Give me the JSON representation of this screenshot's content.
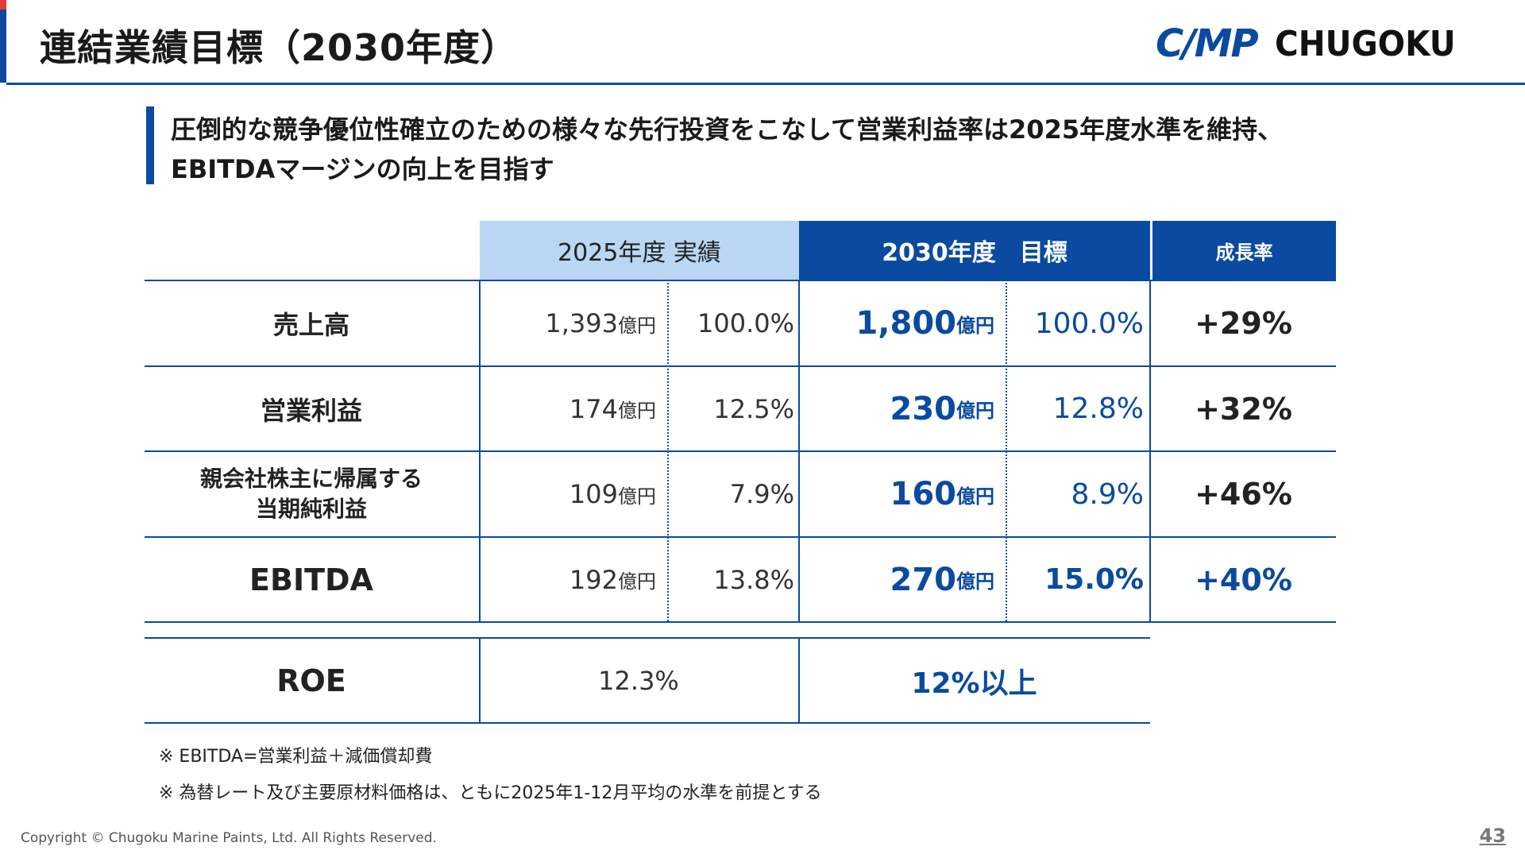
{
  "header": {
    "title": "連結業績目標（2030年度）",
    "logo_mark": "C/MP",
    "logo_text": "CHUGOKU",
    "accent_color": "#0a4aa0"
  },
  "lead": {
    "line1": "圧倒的な競争優位性確立のための様々な先行投資をこなして営業利益率は2025年度水準を維持、",
    "line2": "EBITDAマージンの向上を目指す"
  },
  "table": {
    "header_actual": "2025年度 実績",
    "header_target": "2030年度　目標",
    "header_growth": "成長率",
    "rows": [
      {
        "label": "売上高",
        "actual_value": "1,393",
        "actual_unit": "億円",
        "actual_pct": "100.0%",
        "target_value": "1,800",
        "target_unit": "億円",
        "target_pct": "100.0%",
        "growth": "+29%"
      },
      {
        "label": "営業利益",
        "actual_value": "174",
        "actual_unit": "億円",
        "actual_pct": "12.5%",
        "target_value": "230",
        "target_unit": "億円",
        "target_pct": "12.8%",
        "growth": "+32%"
      },
      {
        "label_line1": "親会社株主に帰属する",
        "label_line2": "当期純利益",
        "actual_value": "109",
        "actual_unit": "億円",
        "actual_pct": "7.9%",
        "target_value": "160",
        "target_unit": "億円",
        "target_pct": "8.9%",
        "growth": "+46%"
      },
      {
        "label": "EBITDA",
        "actual_value": "192",
        "actual_unit": "億円",
        "actual_pct": "13.8%",
        "target_value": "270",
        "target_unit": "億円",
        "target_pct": "15.0%",
        "growth": "+40%"
      }
    ],
    "roe": {
      "label": "ROE",
      "actual": "12.3%",
      "target": "12%以上"
    }
  },
  "notes": [
    "※ EBITDA=営業利益＋減価償却費",
    "※ 為替レート及び主要原材料価格は、ともに2025年1-12月平均の水準を前提とする"
  ],
  "footer": {
    "copyright": "Copyright © Chugoku Marine Paints, Ltd. All Rights Reserved.",
    "page_number": "43"
  }
}
